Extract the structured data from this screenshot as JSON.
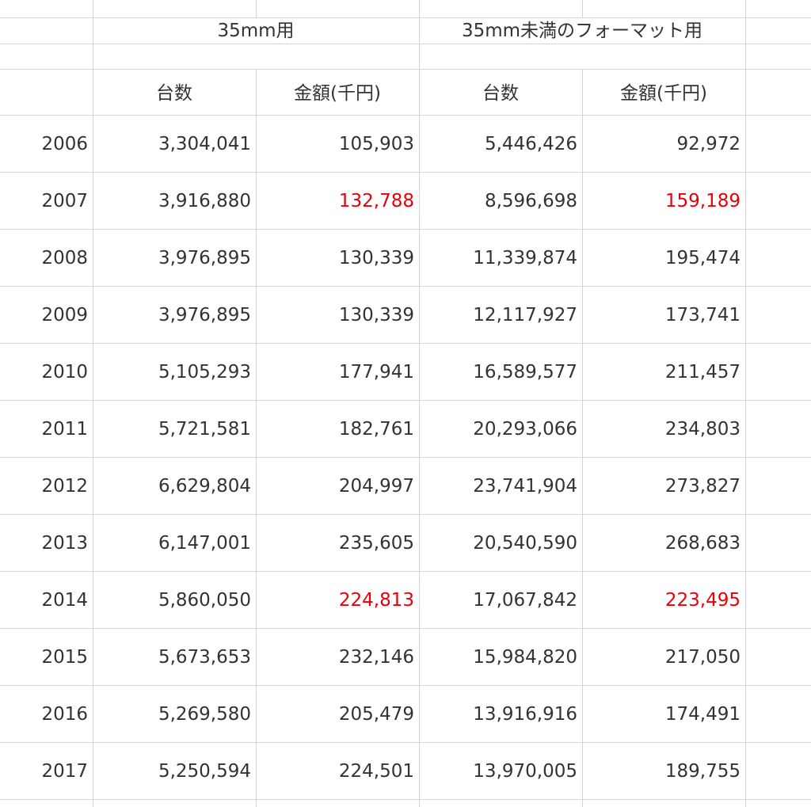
{
  "header": {
    "group_35mm": "35mm用",
    "group_small": "35mm未満のフォーマット用",
    "col_units": "台数",
    "col_amount": "金額(千円)"
  },
  "colors": {
    "highlight": "#e8000b",
    "grid": "#d4d4d4",
    "text": "#333333"
  },
  "rows": [
    {
      "year": "2006",
      "u35": "3,304,041",
      "a35": "105,903",
      "us": "5,446,426",
      "as": "92,972",
      "hl": false
    },
    {
      "year": "2007",
      "u35": "3,916,880",
      "a35": "132,788",
      "us": "8,596,698",
      "as": "159,189",
      "hl": true
    },
    {
      "year": "2008",
      "u35": "3,976,895",
      "a35": "130,339",
      "us": "11,339,874",
      "as": "195,474",
      "hl": false
    },
    {
      "year": "2009",
      "u35": "3,976,895",
      "a35": "130,339",
      "us": "12,117,927",
      "as": "173,741",
      "hl": false
    },
    {
      "year": "2010",
      "u35": "5,105,293",
      "a35": "177,941",
      "us": "16,589,577",
      "as": "211,457",
      "hl": false
    },
    {
      "year": "2011",
      "u35": "5,721,581",
      "a35": "182,761",
      "us": "20,293,066",
      "as": "234,803",
      "hl": false
    },
    {
      "year": "2012",
      "u35": "6,629,804",
      "a35": "204,997",
      "us": "23,741,904",
      "as": "273,827",
      "hl": false
    },
    {
      "year": "2013",
      "u35": "6,147,001",
      "a35": "235,605",
      "us": "20,540,590",
      "as": "268,683",
      "hl": false
    },
    {
      "year": "2014",
      "u35": "5,860,050",
      "a35": "224,813",
      "us": "17,067,842",
      "as": "223,495",
      "hl": true
    },
    {
      "year": "2015",
      "u35": "5,673,653",
      "a35": "232,146",
      "us": "15,984,820",
      "as": "217,050",
      "hl": false
    },
    {
      "year": "2016",
      "u35": "5,269,580",
      "a35": "205,479",
      "us": "13,916,916",
      "as": "174,491",
      "hl": false
    },
    {
      "year": "2017",
      "u35": "5,250,594",
      "a35": "224,501",
      "us": "13,970,005",
      "as": "189,755",
      "hl": false
    }
  ]
}
